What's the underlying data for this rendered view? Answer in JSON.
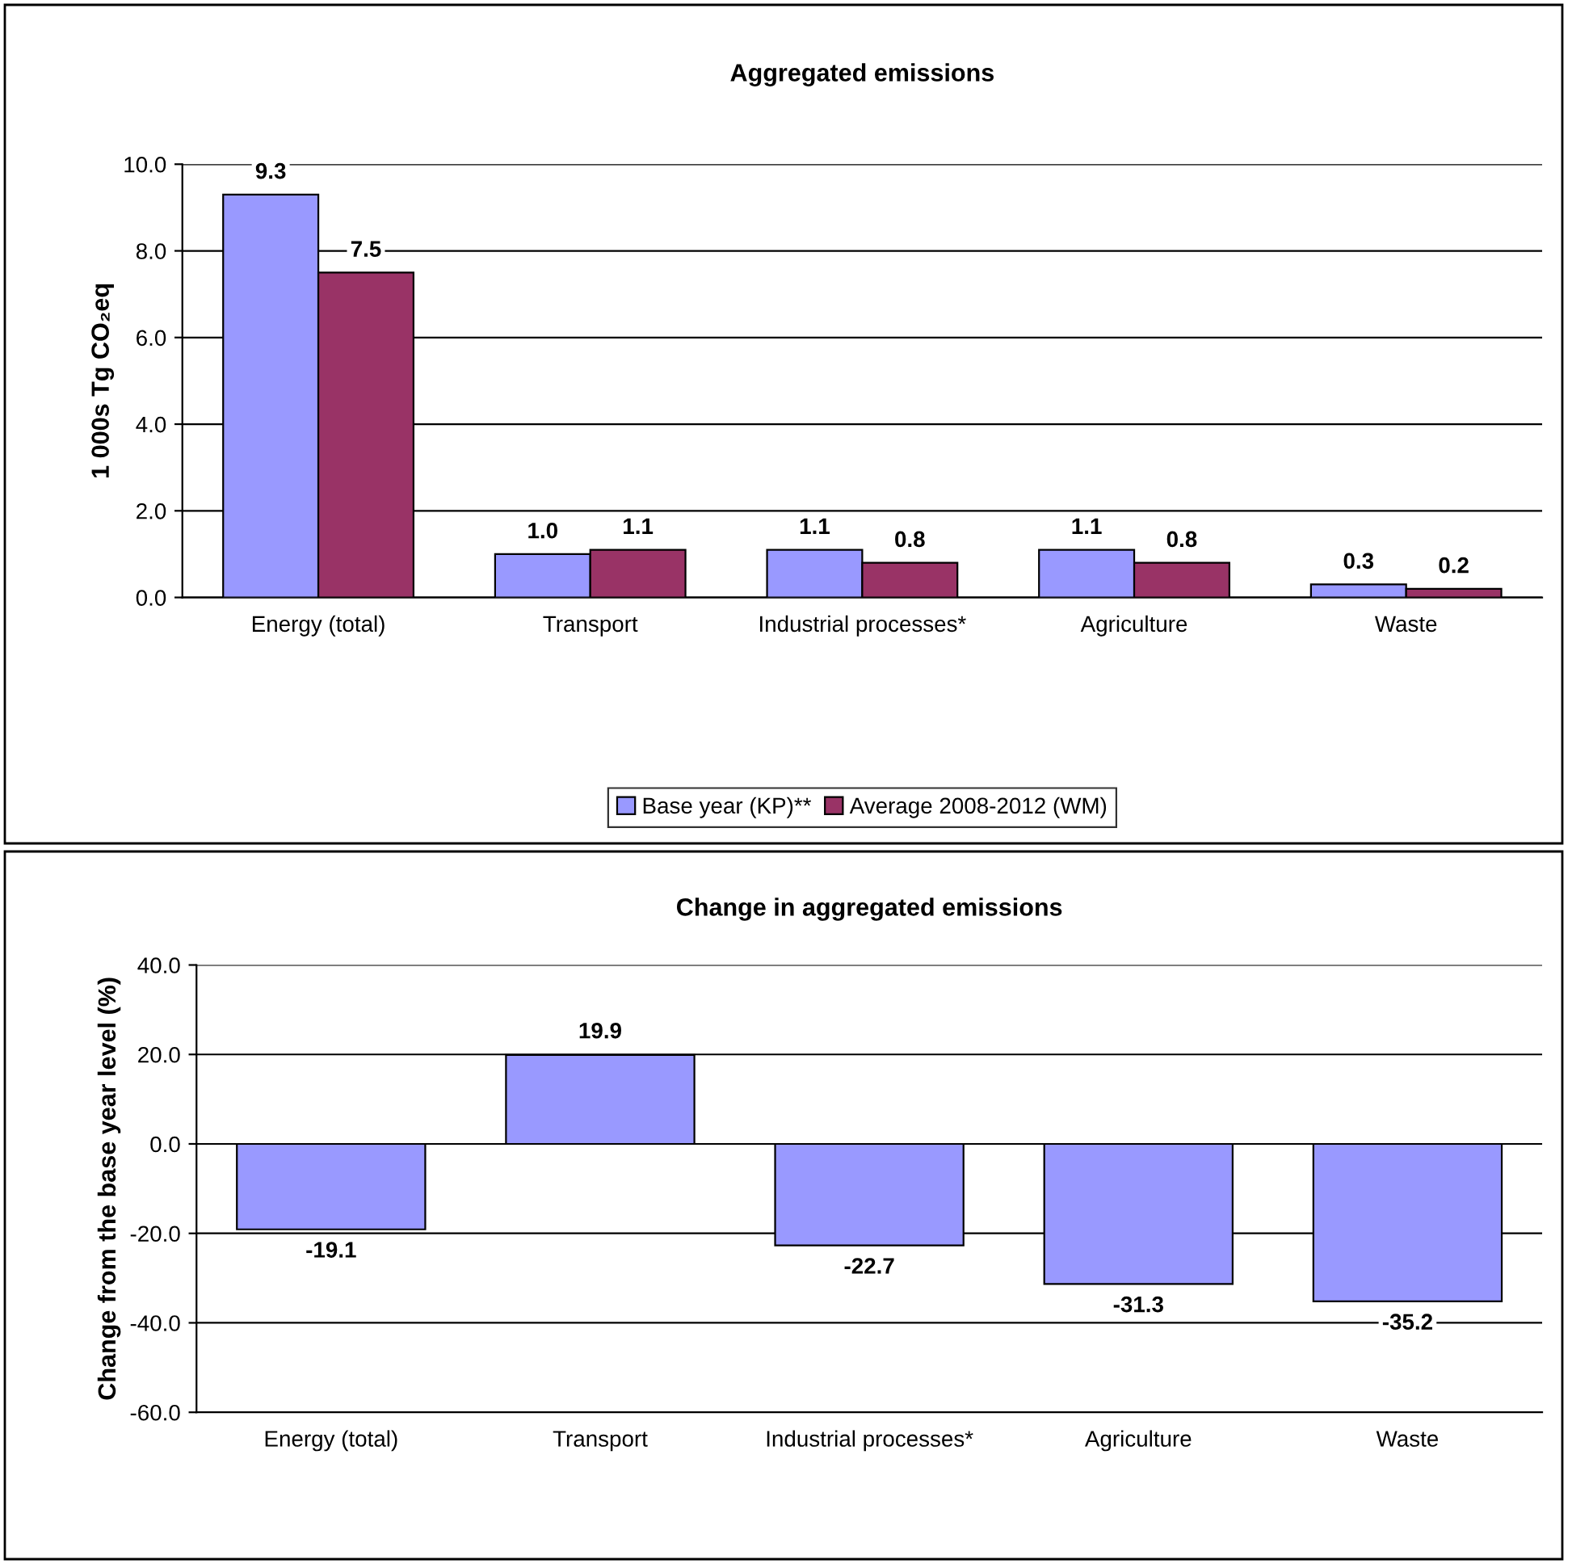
{
  "chart_data": [
    {
      "type": "bar",
      "title": "Aggregated emissions",
      "ylabel": "1 000s Tg CO₂eq",
      "categories": [
        "Energy (total)",
        "Transport",
        "Industrial processes*",
        "Agriculture",
        "Waste"
      ],
      "series": [
        {
          "name": "Base year (KP)**",
          "color": "#9999ff",
          "values": [
            9.3,
            1.0,
            1.1,
            1.1,
            0.3
          ],
          "value_labels": [
            "9.3",
            "1.0",
            "1.1",
            "1.1",
            "0.3"
          ]
        },
        {
          "name": "Average 2008-2012 (WM)",
          "color": "#993366",
          "values": [
            7.5,
            1.1,
            0.8,
            0.8,
            0.2
          ],
          "value_labels": [
            "7.5",
            "1.1",
            "0.8",
            "0.8",
            "0.2"
          ]
        }
      ],
      "ylim": [
        0,
        10
      ],
      "yticks": [
        {
          "value": 0,
          "label": "0.0"
        },
        {
          "value": 2,
          "label": "2.0"
        },
        {
          "value": 4,
          "label": "4.0"
        },
        {
          "value": 6,
          "label": "6.0"
        },
        {
          "value": 8,
          "label": "8.0"
        },
        {
          "value": 10,
          "label": "10.0"
        }
      ],
      "grid": "y",
      "legend": "bottom"
    },
    {
      "type": "bar",
      "title": "Change in aggregated emissions",
      "ylabel": "Change from the base year level (%)",
      "categories": [
        "Energy (total)",
        "Transport",
        "Industrial processes*",
        "Agriculture",
        "Waste"
      ],
      "series": [
        {
          "color": "#9999ff",
          "values": [
            -19.1,
            19.9,
            -22.7,
            -31.3,
            -35.2
          ],
          "value_labels": [
            "-19.1",
            "19.9",
            "-22.7",
            "-31.3",
            "-35.2"
          ]
        }
      ],
      "ylim": [
        -60,
        40
      ],
      "yticks": [
        {
          "value": -60,
          "label": "-60.0"
        },
        {
          "value": -40,
          "label": "-40.0"
        },
        {
          "value": -20,
          "label": "-20.0"
        },
        {
          "value": 0,
          "label": "0.0"
        },
        {
          "value": 20,
          "label": "20.0"
        },
        {
          "value": 40,
          "label": "40.0"
        }
      ],
      "grid": "y",
      "legend": false
    }
  ]
}
